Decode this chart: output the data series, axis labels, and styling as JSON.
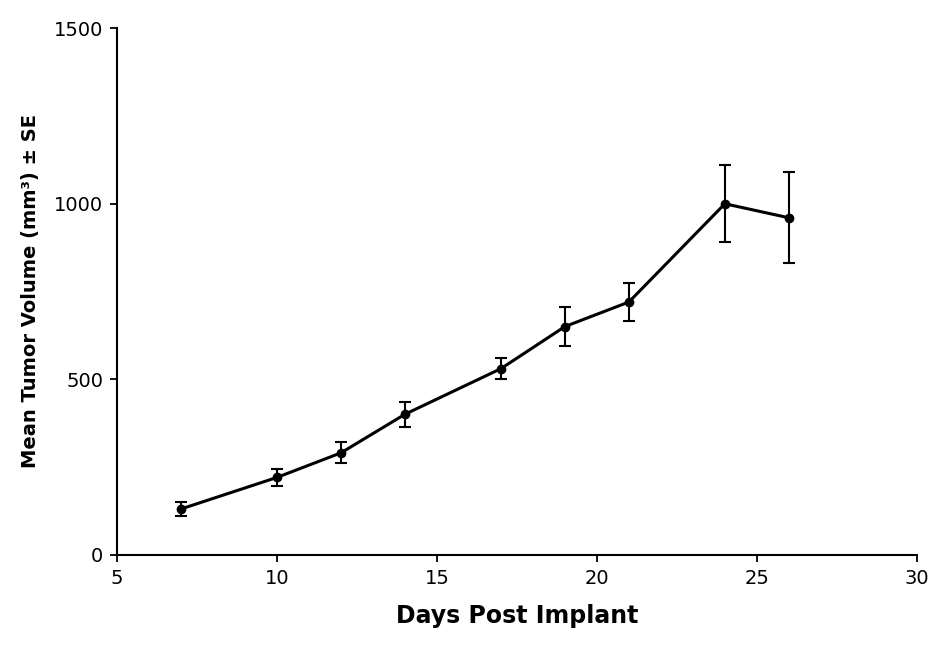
{
  "x": [
    7,
    10,
    12,
    14,
    17,
    19,
    21,
    24,
    26
  ],
  "y": [
    130,
    220,
    290,
    400,
    530,
    650,
    720,
    1000,
    960
  ],
  "se": [
    20,
    25,
    30,
    35,
    30,
    55,
    55,
    110,
    130
  ],
  "xlabel": "Days Post Implant",
  "ylabel": "Mean Tumor Volume (mm³) ± SE",
  "xlim": [
    5,
    30
  ],
  "ylim": [
    0,
    1500
  ],
  "xticks": [
    5,
    10,
    15,
    20,
    25,
    30
  ],
  "yticks": [
    0,
    500,
    1000,
    1500
  ],
  "line_color": "#000000",
  "marker_size": 6,
  "line_width": 2.2,
  "capsize": 4,
  "background_color": "#ffffff",
  "xlabel_fontsize": 17,
  "ylabel_fontsize": 14,
  "tick_fontsize": 14
}
